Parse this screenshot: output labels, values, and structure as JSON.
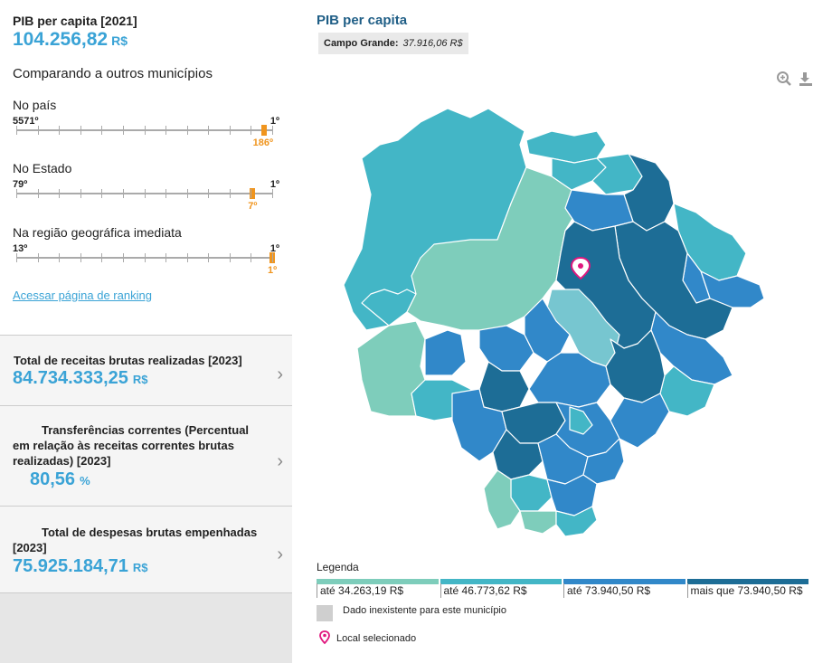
{
  "summary": {
    "title": "PIB per capita [2021]",
    "value": "104.256,82",
    "unit": "R$",
    "compare_heading": "Comparando a outros municípios"
  },
  "rankings": [
    {
      "label": "No país",
      "min": "5571º",
      "max": "1º",
      "position": "186º",
      "fraction": 0.967
    },
    {
      "label": "No Estado",
      "min": "79º",
      "max": "1º",
      "position": "7º",
      "fraction": 0.923
    },
    {
      "label": "Na região geográfica imediata",
      "min": "13º",
      "max": "1º",
      "position": "1º",
      "fraction": 1.0
    }
  ],
  "ranking_link": "Acessar página de ranking",
  "cards": [
    {
      "title": "Total de receitas brutas realizadas [2023]",
      "value": "84.734.333,25",
      "unit": "R$"
    },
    {
      "title": "Transferências correntes (Percentual em relação às receitas correntes brutas realizadas) [2023]",
      "value": "80,56",
      "unit": "%"
    },
    {
      "title": "Total de despesas brutas empenhadas [2023]",
      "value": "75.925.184,71",
      "unit": "R$"
    }
  ],
  "map": {
    "title": "PIB per capita",
    "selected_label": "Campo Grande:",
    "selected_value": "37.916,06 R$",
    "legend_title": "Legenda",
    "legend": [
      {
        "label": "até 34.263,19 R$",
        "color": "#7ecdbb"
      },
      {
        "label": "até 46.773,62 R$",
        "color": "#43b6c6"
      },
      {
        "label": "até 73.940,50 R$",
        "color": "#3188c9"
      },
      {
        "label": "mais que 73.940,50 R$",
        "color": "#1d6d96"
      }
    ],
    "no_data_label": "Dado inexistente para este município",
    "no_data_color": "#cfcfcf",
    "selected_place_label": "Local selecionado",
    "pin_color": "#e0177e",
    "icons": [
      "zoom-in-icon",
      "download-icon"
    ]
  }
}
